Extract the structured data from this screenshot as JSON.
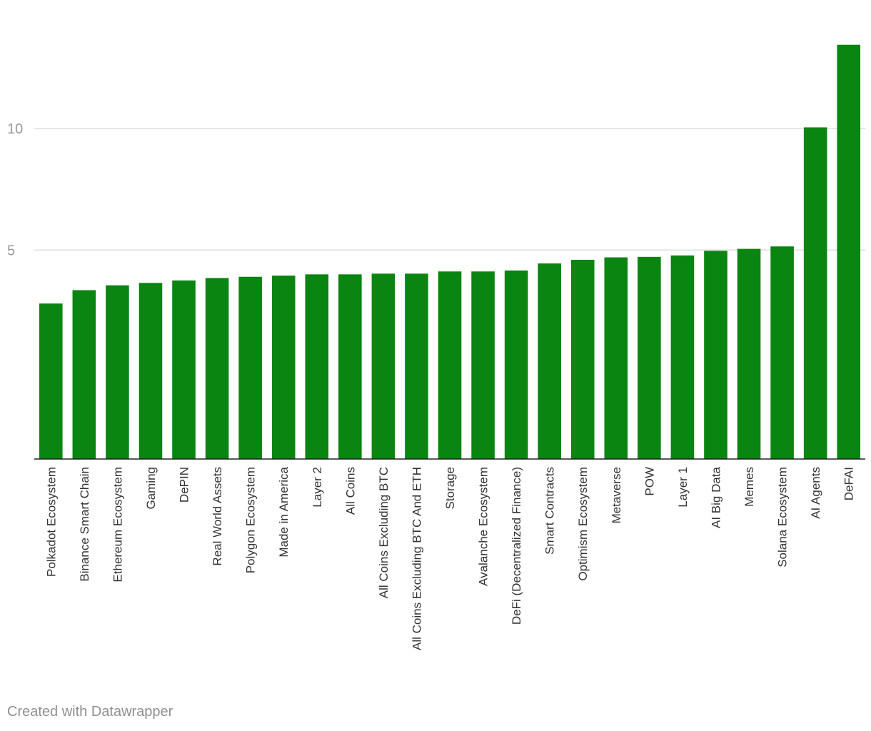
{
  "chart_data": {
    "type": "bar",
    "categories": [
      "Polkadot Ecosystem",
      "Binance Smart Chain",
      "Ethereum Ecosystem",
      "Gaming",
      "DePIN",
      "Real World Assets",
      "Polygon Ecosystem",
      "Made in America",
      "Layer 2",
      "All Coins",
      "All Coins Excluding BTC",
      "All Coins Excluding BTC And ETH",
      "Storage",
      "Avalanche Ecosystem",
      "DeFi (Decentralized Finance)",
      "Smart Contracts",
      "Optimism Ecosystem",
      "Metaverse",
      "POW",
      "Layer 1",
      "AI Big Data",
      "Memes",
      "Solana Ecosystem",
      "AI Agents",
      "DeFAI"
    ],
    "values": [
      2.8,
      3.35,
      3.55,
      3.65,
      3.75,
      3.85,
      3.9,
      3.95,
      4.0,
      4.0,
      4.03,
      4.03,
      4.12,
      4.12,
      4.16,
      4.45,
      4.6,
      4.7,
      4.72,
      4.78,
      4.97,
      5.05,
      5.15,
      10.05,
      13.45
    ],
    "yticks": [
      5,
      10
    ],
    "ylim": [
      -3.6,
      14.0
    ],
    "baseline": 0,
    "grid": true,
    "colors": {
      "bar": "#0a8512",
      "grid": "#dedede",
      "axis": "#222222",
      "tick_text": "#9a9a9a",
      "label_text": "#333333"
    }
  },
  "footer": {
    "credit": "Created with Datawrapper"
  }
}
